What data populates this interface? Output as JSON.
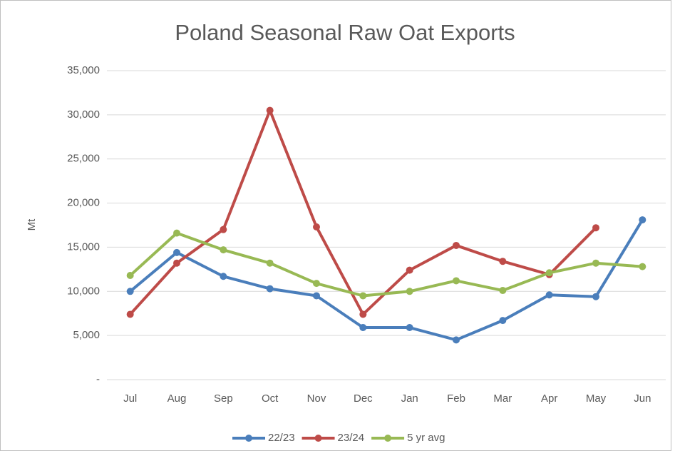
{
  "chart_data": {
    "type": "line",
    "title": "Poland Seasonal Raw Oat Exports",
    "y_label": "Mt",
    "categories": [
      "Jul",
      "Aug",
      "Sep",
      "Oct",
      "Nov",
      "Dec",
      "Jan",
      "Feb",
      "Mar",
      "Apr",
      "May",
      "Jun"
    ],
    "series": [
      {
        "name": "22/23",
        "color": "#4a7ebb",
        "values": [
          10000,
          14400,
          11700,
          10300,
          9500,
          5900,
          5900,
          4500,
          6700,
          9600,
          9400,
          18100
        ]
      },
      {
        "name": "23/24",
        "color": "#be4b48",
        "values": [
          7400,
          13200,
          17000,
          30500,
          17300,
          7400,
          12400,
          15200,
          13400,
          11900,
          17200,
          null
        ]
      },
      {
        "name": "5 yr avg",
        "color": "#98b954",
        "values": [
          11800,
          16600,
          14700,
          13200,
          10900,
          9500,
          10000,
          11200,
          10100,
          12100,
          13200,
          12800
        ]
      }
    ],
    "ylim": [
      0,
      35000
    ],
    "yticks": [
      {
        "value": 0,
        "label": "-"
      },
      {
        "value": 5000,
        "label": "5,000"
      },
      {
        "value": 10000,
        "label": "10,000"
      },
      {
        "value": 15000,
        "label": "15,000"
      },
      {
        "value": 20000,
        "label": "20,000"
      },
      {
        "value": 25000,
        "label": "25,000"
      },
      {
        "value": 30000,
        "label": "30,000"
      },
      {
        "value": 35000,
        "label": "35,000"
      }
    ],
    "grid": true,
    "legend": "bottom"
  }
}
